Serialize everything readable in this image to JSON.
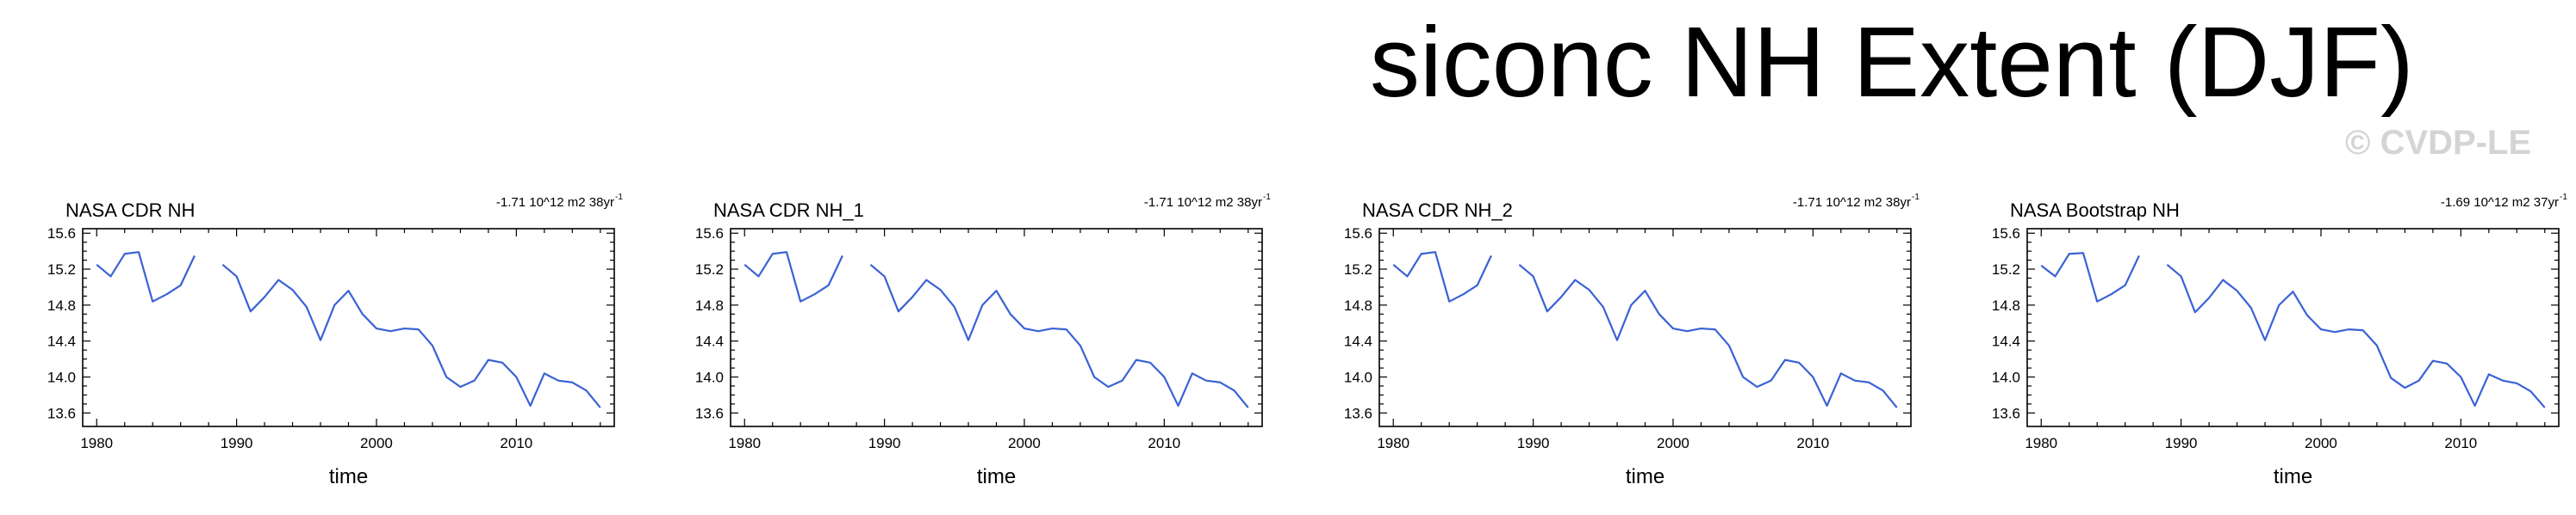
{
  "title": "siconc NH Extent (DJF)",
  "watermark": "© CVDP-LE",
  "colors": {
    "line": "#3a62d4",
    "axis": "#000000",
    "watermark": "#d4d4d4"
  },
  "chart_data": [
    {
      "type": "line",
      "title": "NASA CDR NH",
      "trend_text": "-1.71 10^12 m2 38yr",
      "trend_superscript": "-1",
      "xlabel": "time",
      "ylabel": "",
      "xlim": [
        1979,
        2017
      ],
      "ylim": [
        13.45,
        15.65
      ],
      "xticks": [
        1980,
        1990,
        2000,
        2010
      ],
      "yticks": [
        13.6,
        14.0,
        14.4,
        14.8,
        15.2,
        15.6
      ],
      "ytick_labels": [
        "13.6",
        "14.0",
        "14.4",
        "14.8",
        "15.2",
        "15.6"
      ],
      "series": [
        {
          "x": [
            1980,
            1981,
            1982,
            1983,
            1984,
            1985,
            1986,
            1987,
            1988,
            1989,
            1990,
            1991,
            1992,
            1993,
            1994,
            1995,
            1996,
            1997,
            1998,
            1999,
            2000,
            2001,
            2002,
            2003,
            2004,
            2005,
            2006,
            2007,
            2008,
            2009,
            2010,
            2011,
            2012,
            2013,
            2014,
            2015,
            2016
          ],
          "values": [
            15.25,
            15.12,
            15.37,
            15.39,
            14.84,
            14.92,
            15.02,
            15.35,
            null,
            15.25,
            15.12,
            14.73,
            14.89,
            15.08,
            14.97,
            14.78,
            14.41,
            14.8,
            14.96,
            14.7,
            14.54,
            14.51,
            14.54,
            14.53,
            14.35,
            14.0,
            13.89,
            13.96,
            14.19,
            14.16,
            14.0,
            13.68,
            14.04,
            13.96,
            13.94,
            13.85,
            13.66
          ]
        }
      ]
    },
    {
      "type": "line",
      "title": "NASA CDR NH_1",
      "trend_text": "-1.71 10^12 m2 38yr",
      "trend_superscript": "-1",
      "xlabel": "time",
      "ylabel": "",
      "xlim": [
        1979,
        2017
      ],
      "ylim": [
        13.45,
        15.65
      ],
      "xticks": [
        1980,
        1990,
        2000,
        2010
      ],
      "yticks": [
        13.6,
        14.0,
        14.4,
        14.8,
        15.2,
        15.6
      ],
      "ytick_labels": [
        "13.6",
        "14.0",
        "14.4",
        "14.8",
        "15.2",
        "15.6"
      ],
      "series": [
        {
          "x": [
            1980,
            1981,
            1982,
            1983,
            1984,
            1985,
            1986,
            1987,
            1988,
            1989,
            1990,
            1991,
            1992,
            1993,
            1994,
            1995,
            1996,
            1997,
            1998,
            1999,
            2000,
            2001,
            2002,
            2003,
            2004,
            2005,
            2006,
            2007,
            2008,
            2009,
            2010,
            2011,
            2012,
            2013,
            2014,
            2015,
            2016
          ],
          "values": [
            15.25,
            15.12,
            15.37,
            15.39,
            14.84,
            14.92,
            15.02,
            15.35,
            null,
            15.25,
            15.12,
            14.73,
            14.89,
            15.08,
            14.97,
            14.78,
            14.41,
            14.8,
            14.96,
            14.7,
            14.54,
            14.51,
            14.54,
            14.53,
            14.35,
            14.0,
            13.89,
            13.96,
            14.19,
            14.16,
            14.0,
            13.68,
            14.04,
            13.96,
            13.94,
            13.85,
            13.66
          ]
        }
      ]
    },
    {
      "type": "line",
      "title": "NASA CDR NH_2",
      "trend_text": "-1.71 10^12 m2 38yr",
      "trend_superscript": "-1",
      "xlabel": "time",
      "ylabel": "",
      "xlim": [
        1979,
        2017
      ],
      "ylim": [
        13.45,
        15.65
      ],
      "xticks": [
        1980,
        1990,
        2000,
        2010
      ],
      "yticks": [
        13.6,
        14.0,
        14.4,
        14.8,
        15.2,
        15.6
      ],
      "ytick_labels": [
        "13.6",
        "14.0",
        "14.4",
        "14.8",
        "15.2",
        "15.6"
      ],
      "series": [
        {
          "x": [
            1980,
            1981,
            1982,
            1983,
            1984,
            1985,
            1986,
            1987,
            1988,
            1989,
            1990,
            1991,
            1992,
            1993,
            1994,
            1995,
            1996,
            1997,
            1998,
            1999,
            2000,
            2001,
            2002,
            2003,
            2004,
            2005,
            2006,
            2007,
            2008,
            2009,
            2010,
            2011,
            2012,
            2013,
            2014,
            2015,
            2016
          ],
          "values": [
            15.25,
            15.12,
            15.37,
            15.39,
            14.84,
            14.92,
            15.02,
            15.35,
            null,
            15.25,
            15.12,
            14.73,
            14.89,
            15.08,
            14.97,
            14.78,
            14.41,
            14.8,
            14.96,
            14.7,
            14.54,
            14.51,
            14.54,
            14.53,
            14.35,
            14.0,
            13.89,
            13.96,
            14.19,
            14.16,
            14.0,
            13.68,
            14.04,
            13.96,
            13.94,
            13.85,
            13.66
          ]
        }
      ]
    },
    {
      "type": "line",
      "title": "NASA Bootstrap NH",
      "trend_text": "-1.69 10^12 m2 37yr",
      "trend_superscript": "-1",
      "xlabel": "time",
      "ylabel": "",
      "xlim": [
        1979,
        2017
      ],
      "ylim": [
        13.45,
        15.65
      ],
      "xticks": [
        1980,
        1990,
        2000,
        2010
      ],
      "yticks": [
        13.6,
        14.0,
        14.4,
        14.8,
        15.2,
        15.6
      ],
      "ytick_labels": [
        "13.6",
        "14.0",
        "14.4",
        "14.8",
        "15.2",
        "15.6"
      ],
      "series": [
        {
          "x": [
            1980,
            1981,
            1982,
            1983,
            1984,
            1985,
            1986,
            1987,
            1988,
            1989,
            1990,
            1991,
            1992,
            1993,
            1994,
            1995,
            1996,
            1997,
            1998,
            1999,
            2000,
            2001,
            2002,
            2003,
            2004,
            2005,
            2006,
            2007,
            2008,
            2009,
            2010,
            2011,
            2012,
            2013,
            2014,
            2015,
            2016
          ],
          "values": [
            15.24,
            15.12,
            15.37,
            15.38,
            14.84,
            14.92,
            15.02,
            15.35,
            null,
            15.25,
            15.12,
            14.72,
            14.88,
            15.08,
            14.96,
            14.77,
            14.41,
            14.8,
            14.95,
            14.69,
            14.53,
            14.5,
            14.53,
            14.52,
            14.35,
            13.99,
            13.88,
            13.96,
            14.18,
            14.15,
            14.0,
            13.68,
            14.03,
            13.96,
            13.93,
            13.84,
            13.66
          ]
        }
      ]
    }
  ]
}
